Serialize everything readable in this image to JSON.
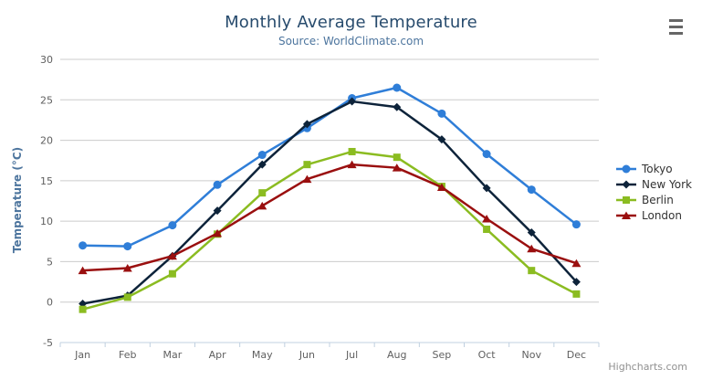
{
  "chart_data": {
    "type": "line",
    "title": "Monthly Average Temperature",
    "subtitle": "Source: WorldClimate.com",
    "xlabel": "",
    "ylabel": "Temperature (°C)",
    "ylim": [
      -5,
      30
    ],
    "yticks": [
      -5,
      0,
      5,
      10,
      15,
      20,
      25,
      30
    ],
    "grid": true,
    "legend_position": "right",
    "categories": [
      "Jan",
      "Feb",
      "Mar",
      "Apr",
      "May",
      "Jun",
      "Jul",
      "Aug",
      "Sep",
      "Oct",
      "Nov",
      "Dec"
    ],
    "series": [
      {
        "name": "Tokyo",
        "color": "#2f7ed8",
        "marker": "circle",
        "values": [
          7.0,
          6.9,
          9.5,
          14.5,
          18.2,
          21.5,
          25.2,
          26.5,
          23.3,
          18.3,
          13.9,
          9.6
        ]
      },
      {
        "name": "New York",
        "color": "#0d233a",
        "marker": "diamond",
        "values": [
          -0.2,
          0.8,
          5.7,
          11.3,
          17.0,
          22.0,
          24.8,
          24.1,
          20.1,
          14.1,
          8.6,
          2.5
        ]
      },
      {
        "name": "Berlin",
        "color": "#8bbc21",
        "marker": "square",
        "values": [
          -0.9,
          0.6,
          3.5,
          8.4,
          13.5,
          17.0,
          18.6,
          17.9,
          14.3,
          9.0,
          3.9,
          1.0
        ]
      },
      {
        "name": "London",
        "color": "#9a0f0f",
        "marker": "triangle",
        "values": [
          3.9,
          4.2,
          5.7,
          8.5,
          11.9,
          15.2,
          17.0,
          16.6,
          14.2,
          10.3,
          6.6,
          4.8
        ]
      }
    ]
  },
  "header": {
    "title": "Monthly Average Temperature",
    "subtitle": "Source: WorldClimate.com",
    "menu_icon": "hamburger-menu-icon"
  },
  "credits": {
    "label": "Highcharts.com"
  },
  "colors": {
    "background": "#ffffff",
    "grid_line": "#cccccc",
    "axis_line": "#c0d0e0",
    "tick_mark": "#c0d0e0",
    "axis_labels": "#606060",
    "title": "#274b6d",
    "subtitle": "#4d759e",
    "axis_title": "#4d759e",
    "legend_text": "#333333",
    "credits": "#909090",
    "menu_icon": "#666666"
  }
}
